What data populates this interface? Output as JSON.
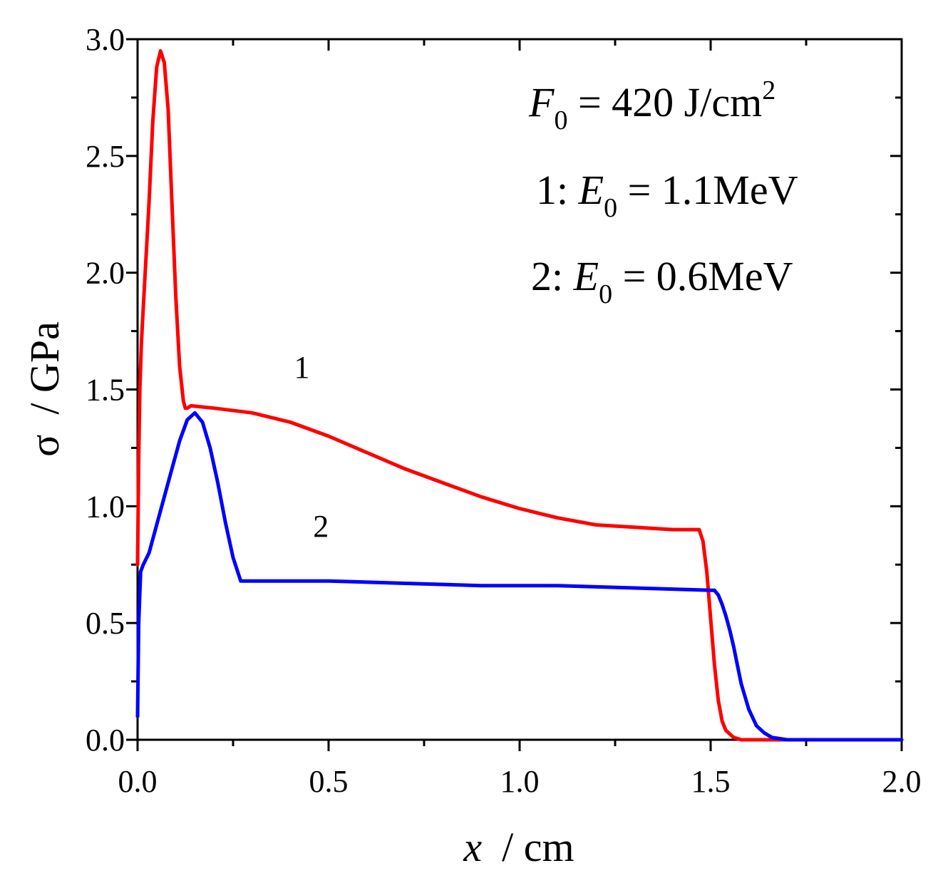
{
  "chart_data": {
    "type": "line",
    "title": "",
    "xlabel": {
      "var": "x",
      "unit": "/ cm"
    },
    "ylabel": {
      "var": "σ",
      "unit": "/ GPa"
    },
    "xlim": [
      0.0,
      2.0
    ],
    "ylim": [
      0.0,
      3.0
    ],
    "x_major_ticks": [
      0.0,
      0.5,
      1.0,
      1.5,
      2.0
    ],
    "x_tick_labels": [
      "0.0",
      "0.5",
      "1.0",
      "1.5",
      "2.0"
    ],
    "y_major_ticks": [
      0.0,
      0.5,
      1.0,
      1.5,
      2.0,
      2.5,
      3.0
    ],
    "y_tick_labels": [
      "0.0",
      "0.5",
      "1.0",
      "1.5",
      "2.0",
      "2.5",
      "3.0"
    ],
    "grid": false,
    "annotation": {
      "fluence": {
        "var": "F",
        "sub": "0",
        "text": " = 420 J/cm",
        "sup": "2"
      },
      "line1": {
        "prefix": "1: ",
        "var": "E",
        "sub": "0",
        "text": " = 1.1MeV"
      },
      "line2": {
        "prefix": "2: ",
        "var": "E",
        "sub": "0",
        "text": " = 0.6MeV"
      }
    },
    "series": [
      {
        "name": "1",
        "label": "1",
        "color": "#ff0000",
        "x": [
          0.0,
          0.003,
          0.006,
          0.01,
          0.015,
          0.02,
          0.03,
          0.04,
          0.05,
          0.06,
          0.07,
          0.08,
          0.09,
          0.1,
          0.11,
          0.12,
          0.125,
          0.13,
          0.14,
          0.2,
          0.3,
          0.4,
          0.5,
          0.6,
          0.7,
          0.8,
          0.9,
          1.0,
          1.1,
          1.2,
          1.3,
          1.4,
          1.47,
          1.48,
          1.49,
          1.5,
          1.51,
          1.52,
          1.53,
          1.54,
          1.56,
          1.58,
          1.6,
          1.62,
          1.65,
          1.7,
          1.8,
          1.9,
          2.0
        ],
        "y": [
          0.75,
          1.2,
          1.5,
          1.7,
          1.85,
          2.0,
          2.3,
          2.65,
          2.88,
          2.95,
          2.9,
          2.7,
          2.3,
          1.9,
          1.6,
          1.45,
          1.42,
          1.42,
          1.43,
          1.42,
          1.4,
          1.36,
          1.3,
          1.23,
          1.16,
          1.1,
          1.04,
          0.99,
          0.95,
          0.92,
          0.91,
          0.9,
          0.9,
          0.85,
          0.72,
          0.52,
          0.32,
          0.17,
          0.08,
          0.04,
          0.01,
          0.0,
          0.0,
          0.0,
          0.0,
          0.0,
          0.0,
          0.0,
          0.0
        ]
      },
      {
        "name": "2",
        "label": "2",
        "color": "#0000ff",
        "x": [
          0.0,
          0.003,
          0.008,
          0.015,
          0.03,
          0.05,
          0.07,
          0.09,
          0.11,
          0.13,
          0.15,
          0.17,
          0.19,
          0.21,
          0.23,
          0.25,
          0.27,
          0.28,
          0.3,
          0.5,
          0.7,
          0.9,
          1.1,
          1.3,
          1.5,
          1.51,
          1.52,
          1.53,
          1.54,
          1.55,
          1.56,
          1.57,
          1.58,
          1.6,
          1.62,
          1.64,
          1.66,
          1.68,
          1.7,
          1.75,
          1.8,
          1.9,
          2.0
        ],
        "y": [
          0.1,
          0.5,
          0.72,
          0.75,
          0.8,
          0.92,
          1.04,
          1.16,
          1.28,
          1.37,
          1.4,
          1.36,
          1.25,
          1.1,
          0.93,
          0.78,
          0.68,
          0.68,
          0.68,
          0.68,
          0.67,
          0.66,
          0.66,
          0.65,
          0.64,
          0.64,
          0.62,
          0.58,
          0.53,
          0.47,
          0.4,
          0.32,
          0.24,
          0.13,
          0.06,
          0.03,
          0.01,
          0.005,
          0.0,
          0.0,
          0.0,
          0.0,
          0.0
        ]
      }
    ],
    "curve_labels": [
      {
        "text": "1",
        "x": 0.43,
        "y": 1.55
      },
      {
        "text": "2",
        "x": 0.48,
        "y": 0.87
      }
    ]
  }
}
